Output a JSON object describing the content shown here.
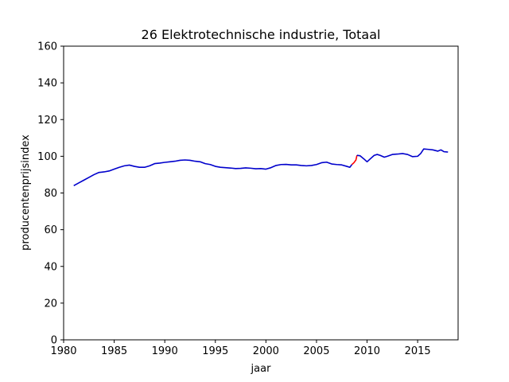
{
  "chart_data": {
    "type": "line",
    "title": "26 Elektrotechnische industrie, Totaal",
    "xlabel": "jaar",
    "ylabel": "producentenprijsindex",
    "xlim": [
      1980,
      2019
    ],
    "ylim": [
      0,
      160
    ],
    "xticks": [
      1980,
      1985,
      1990,
      1995,
      2000,
      2005,
      2010,
      2015
    ],
    "yticks": [
      0,
      20,
      40,
      60,
      80,
      100,
      120,
      140,
      160
    ],
    "grid": false,
    "series": [
      {
        "color": "#0000cc",
        "points": [
          [
            1981.0,
            84.0
          ],
          [
            1981.5,
            85.5
          ],
          [
            1982.0,
            87.0
          ],
          [
            1982.5,
            88.5
          ],
          [
            1983.0,
            90.0
          ],
          [
            1983.5,
            91.2
          ],
          [
            1984.0,
            91.5
          ],
          [
            1984.5,
            92.0
          ],
          [
            1985.0,
            93.0
          ],
          [
            1985.5,
            94.0
          ],
          [
            1986.0,
            94.8
          ],
          [
            1986.5,
            95.2
          ],
          [
            1987.0,
            94.5
          ],
          [
            1987.5,
            94.0
          ],
          [
            1988.0,
            94.0
          ],
          [
            1988.5,
            94.8
          ],
          [
            1989.0,
            96.0
          ],
          [
            1989.5,
            96.3
          ],
          [
            1990.0,
            96.7
          ],
          [
            1990.5,
            97.0
          ],
          [
            1991.0,
            97.3
          ],
          [
            1991.5,
            97.8
          ],
          [
            1992.0,
            98.0
          ],
          [
            1992.5,
            97.8
          ],
          [
            1993.0,
            97.3
          ],
          [
            1993.5,
            97.0
          ],
          [
            1994.0,
            96.0
          ],
          [
            1994.5,
            95.5
          ],
          [
            1995.0,
            94.5
          ],
          [
            1995.5,
            94.0
          ],
          [
            1996.0,
            93.8
          ],
          [
            1996.5,
            93.6
          ],
          [
            1997.0,
            93.3
          ],
          [
            1997.5,
            93.4
          ],
          [
            1998.0,
            93.7
          ],
          [
            1998.5,
            93.5
          ],
          [
            1999.0,
            93.2
          ],
          [
            1999.5,
            93.3
          ],
          [
            2000.0,
            93.0
          ],
          [
            2000.5,
            93.8
          ],
          [
            2001.0,
            95.0
          ],
          [
            2001.5,
            95.5
          ],
          [
            2002.0,
            95.6
          ],
          [
            2002.5,
            95.3
          ],
          [
            2003.0,
            95.3
          ],
          [
            2003.5,
            95.0
          ],
          [
            2004.0,
            94.8
          ],
          [
            2004.5,
            95.0
          ],
          [
            2005.0,
            95.5
          ],
          [
            2005.5,
            96.5
          ],
          [
            2006.0,
            96.8
          ],
          [
            2006.5,
            95.8
          ],
          [
            2007.0,
            95.5
          ],
          [
            2007.5,
            95.3
          ],
          [
            2008.0,
            94.5
          ],
          [
            2008.3,
            94.0
          ],
          [
            2008.5,
            95.5
          ]
        ]
      },
      {
        "color": "#ff0000",
        "points": [
          [
            2008.5,
            95.5
          ],
          [
            2008.7,
            96.5
          ],
          [
            2008.9,
            98.0
          ],
          [
            2009.0,
            100.5
          ]
        ]
      },
      {
        "color": "#0000cc",
        "points": [
          [
            2009.0,
            100.5
          ],
          [
            2009.3,
            100.3
          ],
          [
            2009.7,
            98.5
          ],
          [
            2010.0,
            97.0
          ],
          [
            2010.3,
            98.5
          ],
          [
            2010.7,
            100.5
          ],
          [
            2011.0,
            101.0
          ],
          [
            2011.3,
            100.5
          ],
          [
            2011.7,
            99.5
          ],
          [
            2012.0,
            100.0
          ],
          [
            2012.5,
            101.0
          ],
          [
            2013.0,
            101.2
          ],
          [
            2013.5,
            101.5
          ],
          [
            2014.0,
            101.0
          ],
          [
            2014.5,
            99.8
          ],
          [
            2015.0,
            100.0
          ],
          [
            2015.3,
            101.5
          ],
          [
            2015.6,
            104.0
          ],
          [
            2016.0,
            103.8
          ],
          [
            2016.5,
            103.5
          ],
          [
            2017.0,
            102.8
          ],
          [
            2017.3,
            103.5
          ],
          [
            2017.6,
            102.5
          ],
          [
            2018.0,
            102.3
          ]
        ]
      }
    ]
  }
}
